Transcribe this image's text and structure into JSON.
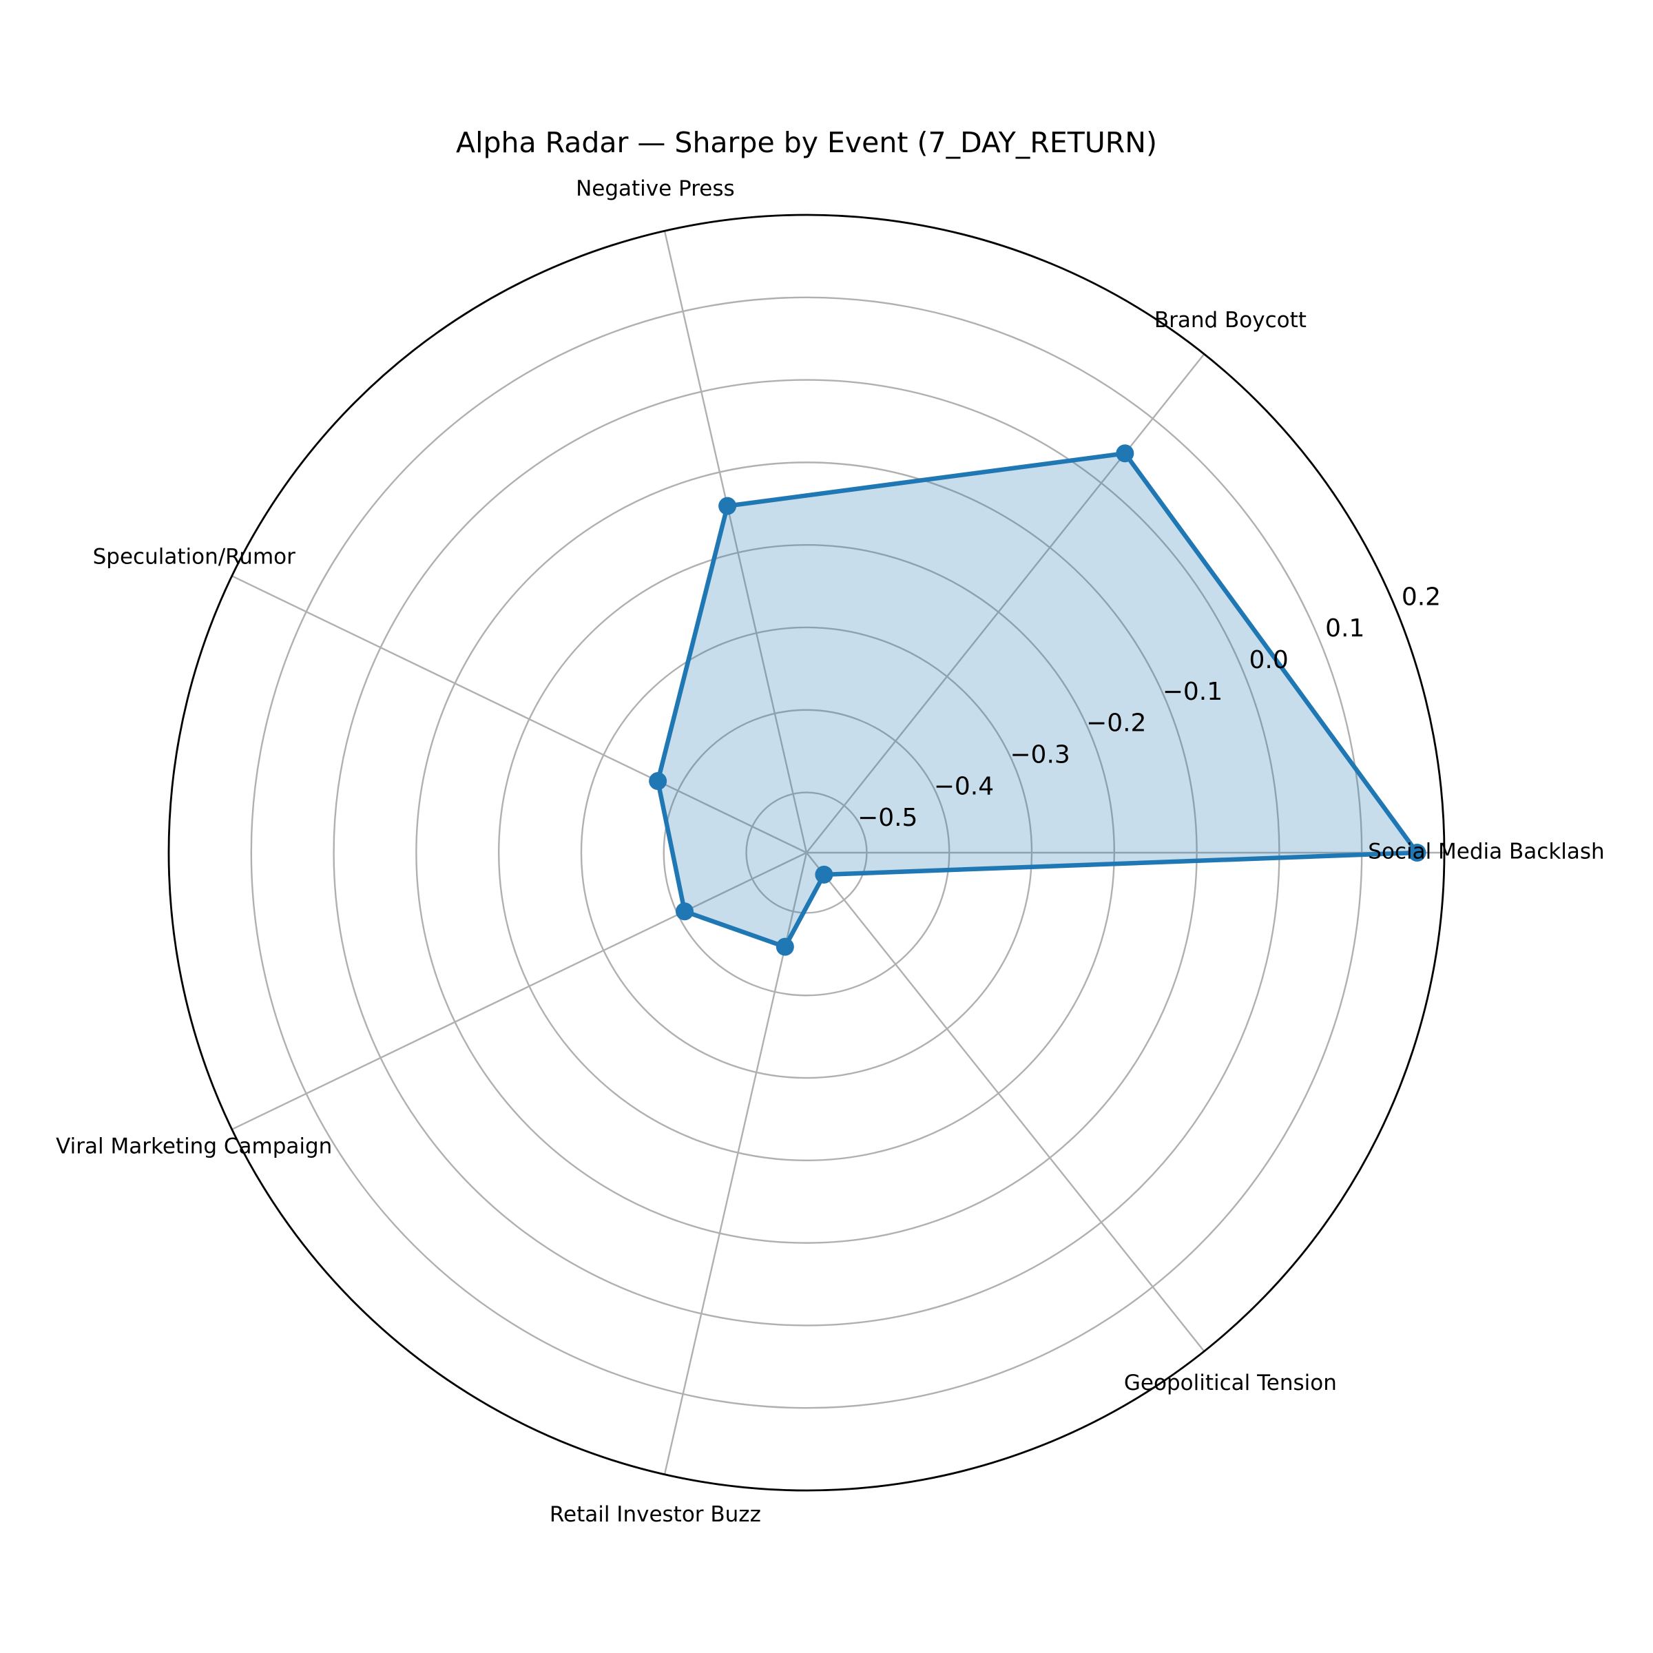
{
  "chart_data": {
    "type": "radar",
    "title": "Alpha Radar — Sharpe by Event (7_DAY_RETURN)",
    "categories": [
      "Social Media Backlash",
      "Brand Boycott",
      "Negative Press",
      "Speculation/Rumor",
      "Viral Marketing Campaign",
      "Retail Investor Buzz",
      "Geopolitical Tension"
    ],
    "values": [
      0.167,
      0.046,
      -0.142,
      -0.373,
      -0.409,
      -0.456,
      -0.539
    ],
    "color": "#1f77b4",
    "ylim": [
      -0.573,
      0.2
    ],
    "yticks": [
      {
        "value": -0.5,
        "label": "−0.5"
      },
      {
        "value": -0.4,
        "label": "−0.4"
      },
      {
        "value": -0.3,
        "label": "−0.3"
      },
      {
        "value": -0.2,
        "label": "−0.2"
      },
      {
        "value": -0.1,
        "label": "−0.1"
      },
      {
        "value": 0.0,
        "label": "0.0"
      },
      0.1,
      0.2
    ],
    "grid": true
  }
}
